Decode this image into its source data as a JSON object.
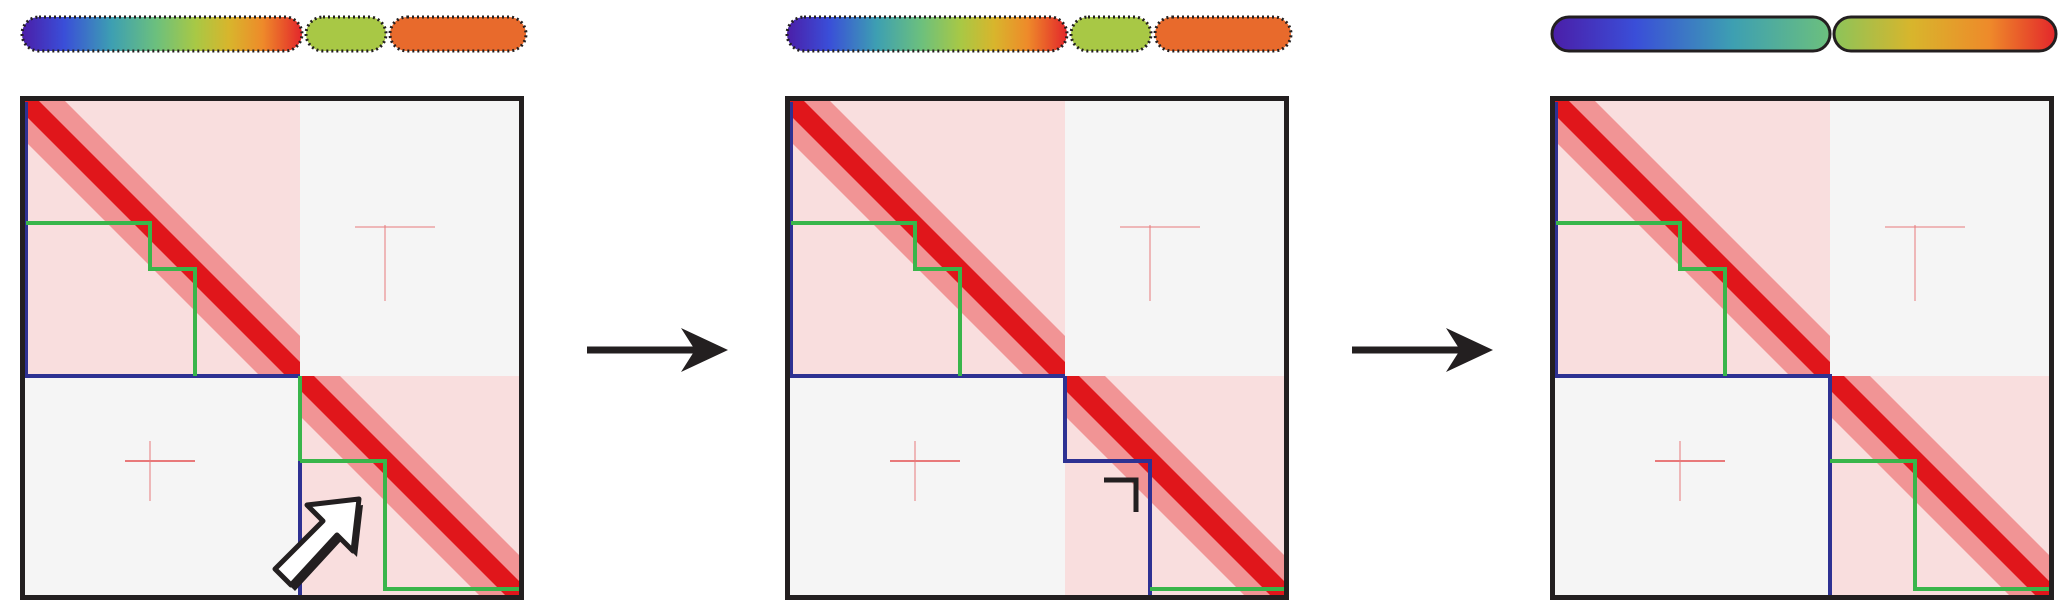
{
  "colors": {
    "contact": "#e0161b",
    "contact_light": "#f7c9c9",
    "background": "#f5f5f5",
    "frame": "#231f20",
    "chromosome_boundary": "#2e3192",
    "contig_boundary": "#39b54a",
    "gradient": [
      "#4b1ea8",
      "#3a4ed8",
      "#3d9fb2",
      "#6cc07d",
      "#a8c845",
      "#d8b52c",
      "#ee8a2a",
      "#e3262b"
    ]
  },
  "panels": [
    {
      "name": "before-edit",
      "chromosome_segments": 3,
      "segment_outline": "dotted",
      "annotation_icon": "arrow-pointer-icon"
    },
    {
      "name": "contig-moved",
      "chromosome_segments": 3,
      "segment_outline": "dotted",
      "annotation_icon": "corner-bracket-icon"
    },
    {
      "name": "chromosomes-split",
      "chromosome_segments": 2,
      "segment_outline": "solid",
      "annotation_icon": ""
    }
  ],
  "transitions": [
    "arrow-right-icon",
    "arrow-right-icon"
  ]
}
